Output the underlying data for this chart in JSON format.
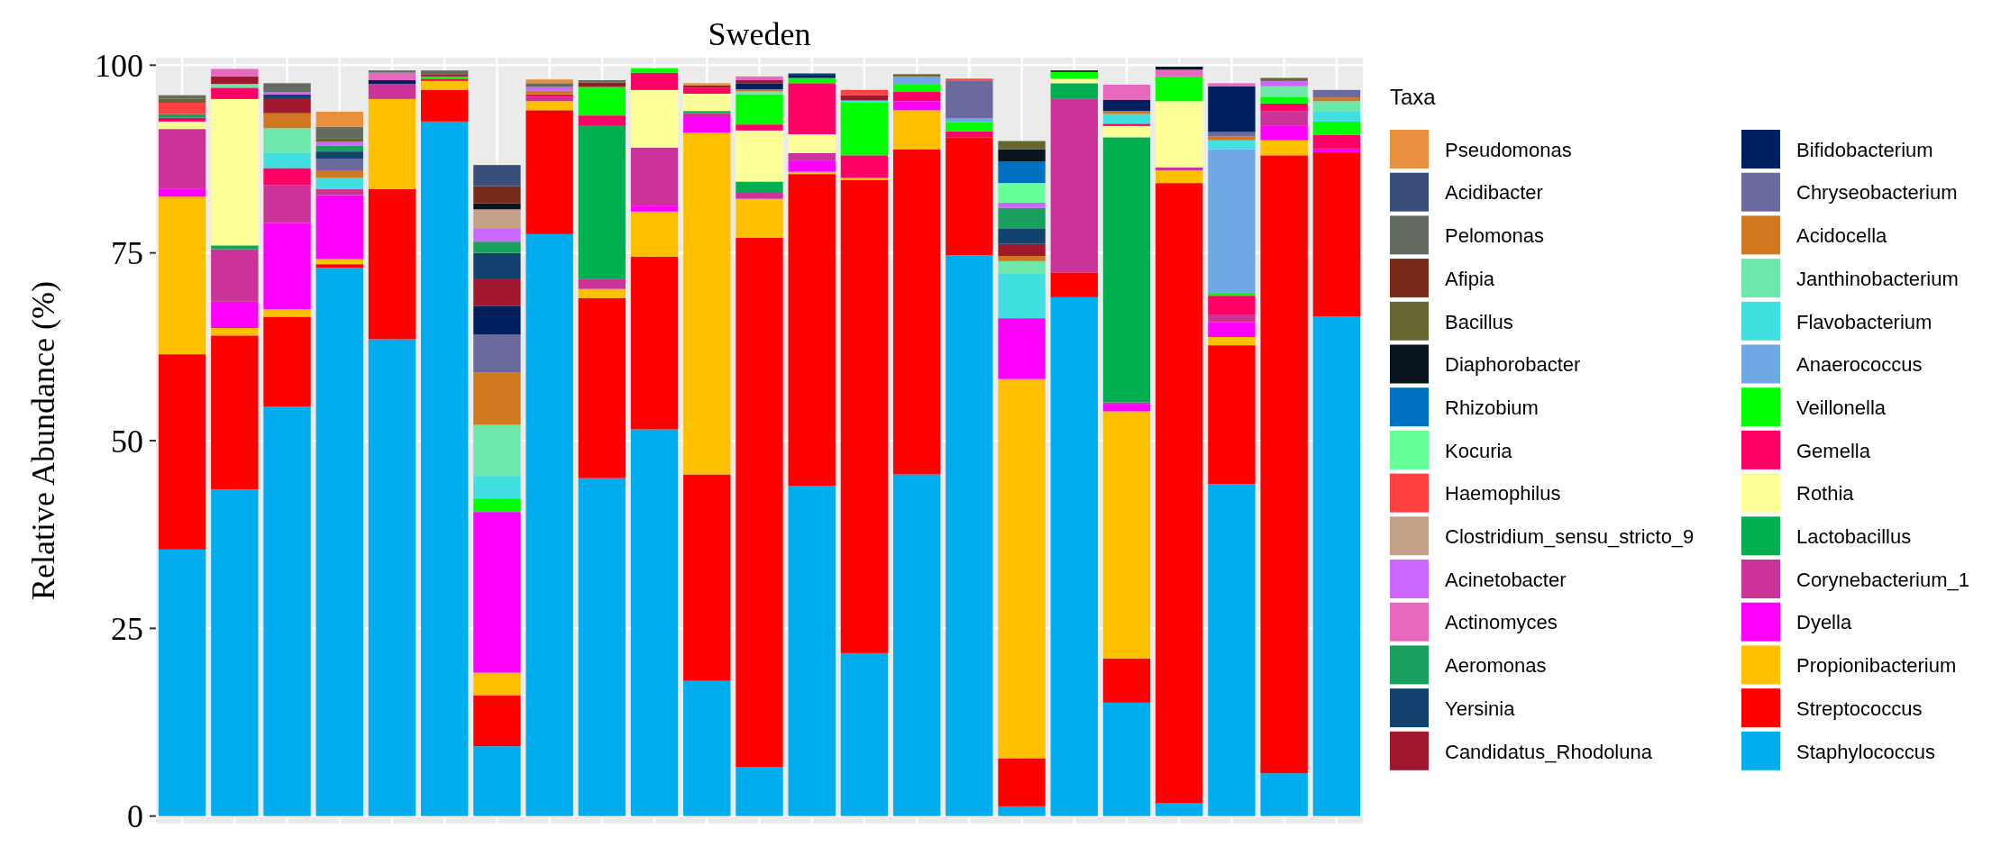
{
  "chart_data": {
    "type": "bar",
    "title": "Sweden",
    "ylabel": "Relative Abundance (%)",
    "legend_title": "Taxa",
    "legend": "right",
    "stacked": true,
    "grid": true,
    "categories": [
      null,
      null,
      null,
      null,
      null,
      null,
      null,
      null,
      null,
      null,
      null,
      null,
      null,
      null,
      null,
      null,
      null,
      null,
      null,
      null,
      null,
      null,
      null
    ],
    "ylim": [
      -1,
      101
    ],
    "yticks": [
      0,
      25,
      50,
      75,
      100
    ],
    "series": [
      {
        "name": "Staphylococcus",
        "color": "#00aeef",
        "values": [
          35.5,
          43.5,
          54.5,
          73,
          63.5,
          92.5,
          9.3,
          77.5,
          45,
          51.5,
          18,
          6.5,
          44,
          21.7,
          45.5,
          74.7,
          1.3,
          69.1,
          15.1,
          1.7,
          44.2,
          5.7,
          66.5
        ]
      },
      {
        "name": "Streptococcus",
        "color": "#ff0000",
        "values": [
          26,
          20.5,
          12,
          0.5,
          20,
          4.2,
          6.8,
          16.5,
          24,
          23,
          27.5,
          70.5,
          41.5,
          63,
          43.3,
          15.7,
          6.4,
          3.3,
          5.9,
          82.6,
          18.5,
          82.3,
          21.9
        ]
      },
      {
        "name": "Propionibacterium",
        "color": "#ffc000",
        "values": [
          21,
          1,
          1,
          0.7,
          12,
          1.2,
          3,
          1.2,
          1.2,
          6,
          45.5,
          5.2,
          0.3,
          0.3,
          5.2,
          null,
          50.5,
          null,
          32.9,
          1.7,
          1.1,
          2,
          null
        ]
      },
      {
        "name": "Dyella",
        "color": "#ff00ff",
        "values": [
          1,
          3.5,
          11.5,
          8.5,
          null,
          null,
          21.4,
          null,
          null,
          0.8,
          2.2,
          null,
          1.5,
          null,
          1.2,
          null,
          8.1,
          null,
          1,
          null,
          2,
          1.9,
          0.5
        ]
      },
      {
        "name": "Corynebacterium_1",
        "color": "#cc3399",
        "values": [
          8,
          7,
          5,
          0.8,
          2,
          null,
          null,
          0.6,
          1.3,
          7.7,
          0.4,
          0.8,
          1,
          null,
          null,
          null,
          null,
          23.1,
          0.2,
          0.4,
          1,
          2,
          null
        ]
      },
      {
        "name": "Lactobacillus",
        "color": "#00b050",
        "values": [
          null,
          0.5,
          null,
          null,
          null,
          null,
          null,
          null,
          20.5,
          null,
          0.3,
          1.5,
          null,
          null,
          null,
          null,
          null,
          2.1,
          35.3,
          null,
          null,
          null,
          null
        ]
      },
      {
        "name": "Rothia",
        "color": "#ffff99",
        "values": [
          1,
          19.5,
          null,
          null,
          null,
          null,
          null,
          null,
          null,
          7.7,
          2.3,
          6.8,
          2.5,
          null,
          null,
          null,
          null,
          0.6,
          1.5,
          8.8,
          null,
          null,
          null
        ]
      },
      {
        "name": "Gemella",
        "color": "#ff0066",
        "values": [
          0.5,
          1.5,
          2.3,
          null,
          null,
          0.3,
          null,
          0.3,
          1.3,
          2.3,
          0.8,
          0.8,
          6.8,
          3,
          1.3,
          0.8,
          null,
          null,
          0.3,
          null,
          2.5,
          1,
          1.8
        ]
      },
      {
        "name": "Veillonella",
        "color": "#00ff00",
        "values": [
          null,
          null,
          null,
          null,
          null,
          0.3,
          1.8,
          null,
          3.8,
          0.6,
          null,
          4,
          0.7,
          7,
          1,
          1.2,
          null,
          0.9,
          null,
          3.3,
          0.4,
          0.9,
          1.8
        ]
      },
      {
        "name": "Anaerococcus",
        "color": "#6fa8e5",
        "values": [
          null,
          null,
          null,
          null,
          null,
          null,
          null,
          null,
          null,
          null,
          null,
          null,
          null,
          null,
          1,
          0.5,
          null,
          null,
          null,
          null,
          19.1,
          null,
          null
        ]
      },
      {
        "name": "Flavobacterium",
        "color": "#40e0e0",
        "values": [
          null,
          null,
          2,
          1.5,
          null,
          null,
          3,
          null,
          null,
          null,
          null,
          null,
          null,
          0.3,
          null,
          null,
          5.9,
          null,
          1.3,
          null,
          1.2,
          null,
          1.4
        ]
      },
      {
        "name": "Janthinobacterium",
        "color": "#6ee8aa",
        "values": [
          null,
          0.5,
          3.3,
          null,
          null,
          null,
          6.8,
          null,
          null,
          null,
          null,
          0.4,
          null,
          null,
          null,
          null,
          1.7,
          null,
          null,
          null,
          null,
          1.4,
          1.3
        ]
      },
      {
        "name": "Acidocella",
        "color": "#d07820",
        "values": [
          null,
          null,
          2,
          1,
          null,
          null,
          7,
          0.5,
          null,
          null,
          null,
          0.3,
          null,
          null,
          null,
          null,
          0.7,
          null,
          0.4,
          null,
          0.5,
          null,
          0.5
        ]
      },
      {
        "name": "Chryseobacterium",
        "color": "#6a6a9e",
        "values": [
          null,
          null,
          null,
          1.5,
          null,
          null,
          5,
          null,
          null,
          null,
          null,
          null,
          null,
          null,
          null,
          5,
          null,
          null,
          null,
          null,
          0.6,
          null,
          1
        ]
      },
      {
        "name": "Bifidobacterium",
        "color": "#002060",
        "values": [
          null,
          null,
          null,
          null,
          0.5,
          null,
          3.8,
          null,
          null,
          null,
          null,
          0.8,
          0.3,
          null,
          null,
          null,
          null,
          null,
          1.5,
          null,
          6.1,
          null,
          null
        ]
      },
      {
        "name": "Candidatus_Rhodoluna",
        "color": "#a0182e",
        "values": [
          null,
          1,
          2,
          null,
          null,
          0.3,
          3.7,
          null,
          0.3,
          null,
          0.3,
          0.4,
          null,
          0.7,
          null,
          null,
          1.6,
          null,
          null,
          null,
          null,
          null,
          null
        ]
      },
      {
        "name": "Yersinia",
        "color": "#13426e",
        "values": [
          null,
          null,
          0.5,
          1,
          null,
          null,
          3.4,
          null,
          null,
          null,
          null,
          null,
          0.3,
          null,
          null,
          null,
          2,
          null,
          null,
          null,
          null,
          null,
          null
        ]
      },
      {
        "name": "Aeromonas",
        "color": "#1aa05e",
        "values": [
          0.5,
          null,
          null,
          0.8,
          null,
          null,
          1.5,
          null,
          null,
          null,
          null,
          null,
          null,
          null,
          null,
          null,
          2.8,
          null,
          null,
          null,
          null,
          null,
          null
        ]
      },
      {
        "name": "Actinomyces",
        "color": "#e868c0",
        "values": [
          null,
          1,
          null,
          null,
          1,
          null,
          null,
          null,
          null,
          null,
          null,
          0.5,
          null,
          null,
          null,
          null,
          null,
          null,
          2,
          0.9,
          0.4,
          null,
          null
        ]
      },
      {
        "name": "Acinetobacter",
        "color": "#cc66ff",
        "values": [
          null,
          null,
          0.3,
          0.5,
          null,
          null,
          1.8,
          0.5,
          null,
          null,
          null,
          null,
          null,
          null,
          null,
          null,
          0.7,
          null,
          null,
          null,
          null,
          0.7,
          null
        ]
      },
      {
        "name": "Clostridium_sensu_stricto_9",
        "color": "#c4a088",
        "values": [
          null,
          null,
          null,
          null,
          null,
          null,
          2.5,
          null,
          null,
          null,
          null,
          null,
          null,
          null,
          null,
          null,
          null,
          null,
          null,
          null,
          null,
          null,
          null
        ]
      },
      {
        "name": "Haemophilus",
        "color": "#ff4040",
        "values": [
          1.5,
          null,
          null,
          null,
          null,
          null,
          null,
          null,
          null,
          null,
          null,
          null,
          null,
          0.7,
          null,
          0.3,
          null,
          null,
          null,
          null,
          null,
          null,
          null
        ]
      },
      {
        "name": "Kocuria",
        "color": "#66ff99",
        "values": [
          null,
          null,
          null,
          null,
          null,
          null,
          null,
          null,
          null,
          null,
          null,
          null,
          null,
          null,
          null,
          null,
          2.6,
          null,
          null,
          null,
          null,
          null,
          null
        ]
      },
      {
        "name": "Rhizobium",
        "color": "#0070c0",
        "values": [
          null,
          null,
          null,
          null,
          null,
          null,
          null,
          null,
          null,
          null,
          null,
          null,
          null,
          null,
          null,
          null,
          2.9,
          null,
          null,
          null,
          null,
          null,
          null
        ]
      },
      {
        "name": "Diaphorobacter",
        "color": "#08141e",
        "values": [
          null,
          null,
          null,
          null,
          null,
          null,
          0.8,
          null,
          null,
          null,
          null,
          null,
          null,
          null,
          null,
          null,
          1.6,
          0.2,
          null,
          0.4,
          null,
          null,
          null
        ]
      },
      {
        "name": "Bacillus",
        "color": "#666633",
        "values": [
          0.5,
          null,
          null,
          0.5,
          null,
          null,
          null,
          null,
          null,
          null,
          null,
          null,
          null,
          null,
          0.3,
          null,
          1.1,
          null,
          null,
          null,
          null,
          0.4,
          null
        ]
      },
      {
        "name": "Afipia",
        "color": "#7a2a18",
        "values": [
          null,
          null,
          null,
          null,
          null,
          null,
          2.3,
          null,
          0.3,
          null,
          null,
          null,
          null,
          null,
          null,
          null,
          null,
          null,
          null,
          null,
          null,
          null,
          null
        ]
      },
      {
        "name": "Pelomonas",
        "color": "#646c60",
        "values": [
          0.5,
          null,
          1.2,
          1.5,
          0.3,
          0.5,
          null,
          0.5,
          0.3,
          null,
          null,
          null,
          null,
          null,
          null,
          null,
          null,
          null,
          null,
          null,
          null,
          null,
          null
        ]
      },
      {
        "name": "Acidibacter",
        "color": "#3a4e7a",
        "values": [
          null,
          null,
          null,
          null,
          null,
          null,
          2.8,
          null,
          null,
          null,
          null,
          null,
          null,
          null,
          null,
          null,
          null,
          null,
          null,
          null,
          null,
          null,
          null
        ]
      },
      {
        "name": "Pseudomonas",
        "color": "#e89040",
        "values": [
          null,
          null,
          null,
          2,
          null,
          null,
          null,
          0.5,
          null,
          null,
          0.3,
          null,
          null,
          null,
          null,
          null,
          null,
          null,
          null,
          null,
          null,
          null,
          null
        ]
      }
    ]
  }
}
